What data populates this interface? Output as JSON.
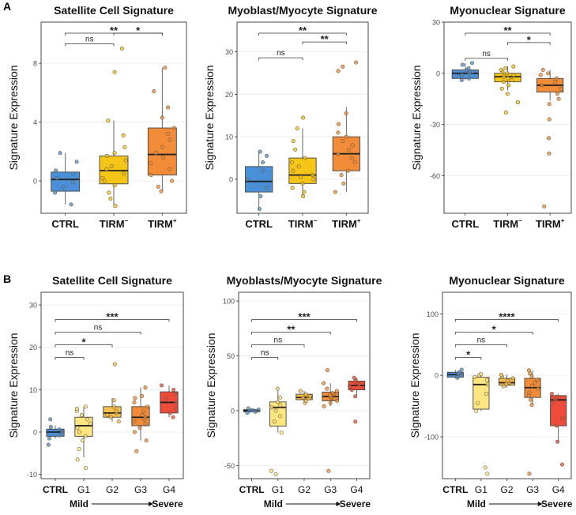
{
  "figure": {
    "panels": [
      {
        "letter": "A"
      },
      {
        "letter": "B"
      }
    ]
  },
  "chart_data": [
    {
      "panel": "A",
      "type": "box",
      "title": "Satellite Cell Signature",
      "ylabel": "Signature Expression",
      "ylim": [
        -2.2,
        10.8
      ],
      "yticks": [
        0,
        4,
        8
      ],
      "categories": [
        "CTRL",
        "TIRM",
        "TIRM"
      ],
      "category_superscripts": [
        "",
        "−",
        "+"
      ],
      "colors": [
        "#4a90d9",
        "#f5c518",
        "#f28c38"
      ],
      "boxes": [
        {
          "min": -1.6,
          "q1": -0.7,
          "median": 0.1,
          "q3": 0.6,
          "max": 1.9
        },
        {
          "min": -1.7,
          "q1": -0.2,
          "median": 0.7,
          "q3": 1.7,
          "max": 4.1
        },
        {
          "min": -0.7,
          "q1": 0.4,
          "median": 1.8,
          "q3": 3.6,
          "max": 7.7
        }
      ],
      "points": [
        [
          -1.6,
          -0.8,
          -0.4,
          -0.1,
          0.2,
          0.5,
          0.7,
          1.3,
          1.9
        ],
        [
          -1.7,
          -1.2,
          -0.8,
          -0.3,
          0.0,
          0.2,
          0.5,
          0.8,
          1.0,
          1.4,
          1.7,
          1.9,
          2.3,
          3.1,
          4.1,
          7.4,
          9.0
        ],
        [
          -0.7,
          -0.4,
          0.0,
          0.4,
          0.8,
          1.2,
          1.6,
          1.9,
          2.3,
          2.8,
          3.2,
          3.6,
          4.3,
          5.0,
          6.1,
          7.7
        ]
      ],
      "annotations": [
        {
          "from": 0,
          "to": 1,
          "label": "ns",
          "level": 0
        },
        {
          "from": 0,
          "to": 2,
          "label": "**",
          "level": 2
        },
        {
          "from": 1,
          "to": 2,
          "label": "*",
          "level": 1
        }
      ],
      "xaxis_note": null
    },
    {
      "panel": "A",
      "type": "box",
      "title": "Myoblast/Myocyte Signature",
      "ylabel": "Signature Expression",
      "ylim": [
        -8,
        37
      ],
      "yticks": [
        0,
        10,
        20,
        30
      ],
      "categories": [
        "CTRL",
        "TIRM",
        "TIRM"
      ],
      "category_superscripts": [
        "",
        "−",
        "+"
      ],
      "colors": [
        "#4a90d9",
        "#f5c518",
        "#f28c38"
      ],
      "boxes": [
        {
          "min": -7,
          "q1": -3,
          "median": -0.5,
          "q3": 3,
          "max": 6.5
        },
        {
          "min": -4,
          "q1": -1,
          "median": 1,
          "q3": 5,
          "max": 12
        },
        {
          "min": -3,
          "q1": 2,
          "median": 6,
          "q3": 10,
          "max": 17
        }
      ],
      "points": [
        [
          -7,
          -4,
          -2,
          0,
          2,
          4,
          5.5,
          6.5
        ],
        [
          -4,
          -3,
          -2,
          -1,
          0,
          0.5,
          1,
          2,
          3,
          4,
          5,
          7,
          9,
          12,
          14.5
        ],
        [
          -3,
          -1,
          1,
          2,
          4,
          5,
          6,
          7,
          8,
          9,
          10,
          11,
          13,
          15.5,
          25.5,
          26.5,
          27.5
        ]
      ],
      "annotations": [
        {
          "from": 0,
          "to": 1,
          "label": "ns",
          "level": 0
        },
        {
          "from": 0,
          "to": 2,
          "label": "**",
          "level": 2
        },
        {
          "from": 1,
          "to": 2,
          "label": "**",
          "level": 1
        }
      ],
      "xaxis_note": null
    },
    {
      "panel": "A",
      "type": "box",
      "title": "Myonuclear Signature",
      "ylabel": "Signature Expression",
      "ylim": [
        -82,
        30
      ],
      "yticks": [
        -60,
        -30,
        0,
        30
      ],
      "categories": [
        "CTRL",
        "TIRM",
        "TIRM"
      ],
      "category_superscripts": [
        "",
        "−",
        "+"
      ],
      "colors": [
        "#4a90d9",
        "#f5c518",
        "#f28c38"
      ],
      "boxes": [
        {
          "min": -4,
          "q1": -3,
          "median": 0,
          "q3": 2,
          "max": 6
        },
        {
          "min": -10,
          "q1": -5,
          "median": -2,
          "q3": 0,
          "max": 4
        },
        {
          "min": -16,
          "q1": -11,
          "median": -7,
          "q3": -3,
          "max": 2
        }
      ],
      "points": [
        [
          -4,
          -3,
          -2,
          -1,
          0,
          1,
          2,
          3,
          5,
          6
        ],
        [
          -23,
          -17,
          -12,
          -9,
          -7,
          -5,
          -4,
          -3,
          -2,
          -1,
          0,
          1,
          2,
          3,
          4
        ],
        [
          -78,
          -47,
          -38,
          -27,
          -18,
          -15,
          -12,
          -9,
          -7,
          -5,
          -3,
          -1,
          0,
          2
        ]
      ],
      "annotations": [
        {
          "from": 0,
          "to": 1,
          "label": "ns",
          "level": 0
        },
        {
          "from": 0,
          "to": 2,
          "label": "**",
          "level": 2
        },
        {
          "from": 1,
          "to": 2,
          "label": "*",
          "level": 1
        }
      ],
      "xaxis_note": null
    },
    {
      "panel": "B",
      "type": "box",
      "title": "Satellite Cell Signature",
      "ylabel": "Signature Expression",
      "ylim": [
        -11,
        33
      ],
      "yticks": [
        -10,
        0,
        10,
        20,
        30
      ],
      "categories": [
        "CTRL",
        "G1",
        "G2",
        "G3",
        "G4"
      ],
      "category_superscripts": [
        "",
        "",
        "",
        "",
        ""
      ],
      "colors": [
        "#4a90d9",
        "#ffe680",
        "#f7c04a",
        "#f28c38",
        "#ee4b3b"
      ],
      "boxes": [
        {
          "min": -1.5,
          "q1": -1,
          "median": 0,
          "q3": 0.7,
          "max": 1.5
        },
        {
          "min": -6,
          "q1": -1,
          "median": 1.5,
          "q3": 3.5,
          "max": 6
        },
        {
          "min": 2.5,
          "q1": 3.5,
          "median": 4.5,
          "q3": 6,
          "max": 8
        },
        {
          "min": -2,
          "q1": 1.5,
          "median": 3.5,
          "q3": 6,
          "max": 10.5
        },
        {
          "min": 3.5,
          "q1": 4.5,
          "median": 7,
          "q3": 9.5,
          "max": 11
        }
      ],
      "points": [
        [
          -3,
          -1.5,
          -0.8,
          0,
          0.6,
          1.2,
          3
        ],
        [
          -8.5,
          -6.5,
          -4,
          -2,
          -1,
          0,
          1,
          2,
          3,
          4,
          5,
          5.5,
          6
        ],
        [
          2.5,
          3.5,
          4,
          4.5,
          5,
          6,
          7.5,
          16
        ],
        [
          -4.5,
          -2,
          0,
          1,
          2,
          2.5,
          3,
          3.5,
          4,
          5,
          6,
          7,
          8,
          8.5,
          10.5
        ],
        [
          3.5,
          4.5,
          5.5,
          7,
          8,
          9,
          10,
          11
        ]
      ],
      "annotations": [
        {
          "from": 0,
          "to": 1,
          "label": "ns",
          "level": 0
        },
        {
          "from": 0,
          "to": 2,
          "label": "*",
          "level": 1
        },
        {
          "from": 0,
          "to": 3,
          "label": "ns",
          "level": 2
        },
        {
          "from": 0,
          "to": 4,
          "label": "***",
          "level": 3
        }
      ],
      "xaxis_note": {
        "left": "Mild",
        "right": "Severe"
      }
    },
    {
      "panel": "B",
      "type": "box",
      "title": "Myoblasts/Myocyte Signature",
      "ylabel": "Signature Expression",
      "ylim": [
        -62,
        108
      ],
      "yticks": [
        -50,
        0,
        50,
        100
      ],
      "categories": [
        "CTRL",
        "G1",
        "G2",
        "G3",
        "G4"
      ],
      "category_superscripts": [
        "",
        "",
        "",
        "",
        ""
      ],
      "colors": [
        "#4a90d9",
        "#ffe680",
        "#f7c04a",
        "#f28c38",
        "#ee4b3b"
      ],
      "boxes": [
        {
          "min": -1.5,
          "q1": -1,
          "median": 0,
          "q3": 1,
          "max": 2
        },
        {
          "min": -20,
          "q1": -14,
          "median": 3,
          "q3": 8,
          "max": 20
        },
        {
          "min": 7,
          "q1": 10,
          "median": 12,
          "q3": 15,
          "max": 18
        },
        {
          "min": 4,
          "q1": 9,
          "median": 13,
          "q3": 17,
          "max": 25
        },
        {
          "min": 13,
          "q1": 19,
          "median": 23,
          "q3": 27,
          "max": 30
        }
      ],
      "points": [
        [
          -2,
          -1,
          0,
          0.5,
          1,
          2
        ],
        [
          -58,
          -55,
          -20,
          -10,
          -5,
          0,
          3,
          5,
          8,
          12,
          20
        ],
        [
          7,
          9,
          11,
          12,
          13,
          15,
          18
        ],
        [
          -55,
          4,
          7,
          9,
          11,
          12,
          13,
          14,
          15,
          16,
          18,
          20,
          25,
          37
        ],
        [
          -10,
          13,
          19,
          22,
          24,
          26,
          28,
          30
        ]
      ],
      "annotations": [
        {
          "from": 0,
          "to": 1,
          "label": "ns",
          "level": 0
        },
        {
          "from": 0,
          "to": 2,
          "label": "ns",
          "level": 1
        },
        {
          "from": 0,
          "to": 3,
          "label": "**",
          "level": 2
        },
        {
          "from": 0,
          "to": 4,
          "label": "***",
          "level": 3
        }
      ],
      "xaxis_note": {
        "left": "Mild",
        "right": "Severe"
      }
    },
    {
      "panel": "B",
      "type": "box",
      "title": "Myonuclear Signature",
      "ylabel": "Signature Expression",
      "ylim": [
        -168,
        135
      ],
      "yticks": [
        -100,
        0,
        100
      ],
      "categories": [
        "CTRL",
        "G1",
        "G2",
        "G3",
        "G4"
      ],
      "category_superscripts": [
        "",
        "",
        "",
        "",
        ""
      ],
      "colors": [
        "#4a90d9",
        "#ffe680",
        "#f7c04a",
        "#f28c38",
        "#ee4b3b"
      ],
      "boxes": [
        {
          "min": -4,
          "q1": -3,
          "median": 1,
          "q3": 5,
          "max": 9
        },
        {
          "min": -58,
          "q1": -55,
          "median": -15,
          "q3": -3,
          "max": 2
        },
        {
          "min": -20,
          "q1": -16,
          "median": -12,
          "q3": -5,
          "max": 1
        },
        {
          "min": -48,
          "q1": -36,
          "median": -20,
          "q3": -5,
          "max": 8
        },
        {
          "min": -110,
          "q1": -82,
          "median": -40,
          "q3": -33,
          "max": -30
        }
      ],
      "points": [
        [
          -4,
          -2,
          0,
          2,
          5,
          9
        ],
        [
          -160,
          -150,
          -58,
          -45,
          -30,
          -15,
          -8,
          -3,
          0,
          2
        ],
        [
          -18,
          -14,
          -12,
          -9,
          -5,
          -2,
          1
        ],
        [
          -160,
          -48,
          -40,
          -33,
          -28,
          -22,
          -17,
          -12,
          -7,
          -2,
          3,
          8
        ],
        [
          -145,
          -108,
          -82,
          -70,
          -45,
          -40,
          -35,
          -30
        ]
      ],
      "annotations": [
        {
          "from": 0,
          "to": 1,
          "label": "*",
          "level": 0
        },
        {
          "from": 0,
          "to": 2,
          "label": "ns",
          "level": 1
        },
        {
          "from": 0,
          "to": 3,
          "label": "*",
          "level": 2
        },
        {
          "from": 0,
          "to": 4,
          "label": "****",
          "level": 3
        }
      ],
      "xaxis_note": {
        "left": "Mild",
        "right": "Severe"
      }
    }
  ]
}
